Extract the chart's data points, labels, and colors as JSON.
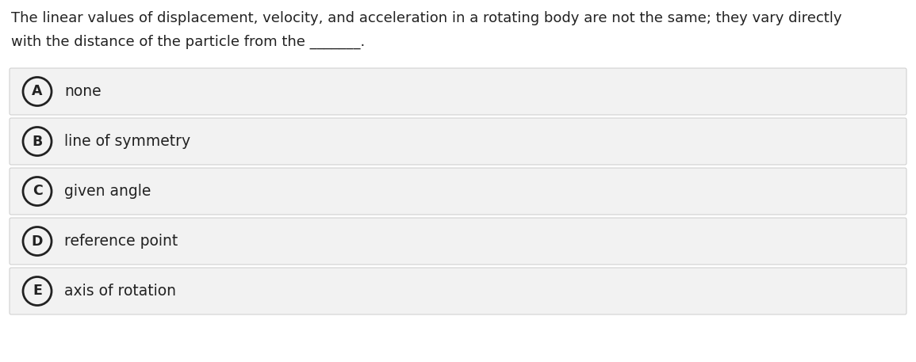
{
  "question_line1": "The linear values of displacement, velocity, and acceleration in a rotating body are not the same; they vary directly",
  "question_line2": "with the distance of the particle from the _______.",
  "options": [
    {
      "label": "A",
      "text": "none"
    },
    {
      "label": "B",
      "text": "line of symmetry"
    },
    {
      "label": "C",
      "text": "given angle"
    },
    {
      "label": "D",
      "text": "reference point"
    },
    {
      "label": "E",
      "text": "axis of rotation"
    }
  ],
  "bg_color": "#ffffff",
  "option_bg_color": "#f2f2f2",
  "option_border_color": "#cccccc",
  "text_color": "#222222",
  "circle_edge_color": "#222222",
  "question_fontsize": 13.0,
  "option_fontsize": 13.5,
  "label_fontsize": 12.5
}
